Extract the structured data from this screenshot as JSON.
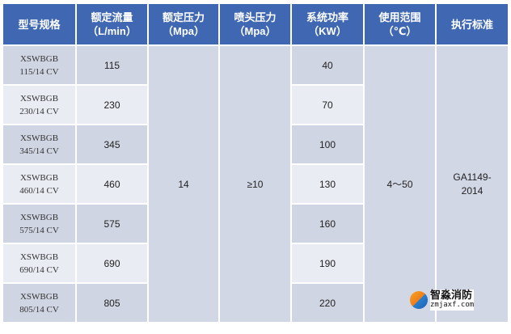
{
  "headers": [
    {
      "line1": "型号规格",
      "line2": ""
    },
    {
      "line1": "额定流量",
      "line2": "（L/min）"
    },
    {
      "line1": "额定压力",
      "line2": "（Mpa）"
    },
    {
      "line1": "喷头压力",
      "line2": "（Mpa）"
    },
    {
      "line1": "系统功率",
      "line2": "（KW）"
    },
    {
      "line1": "使用范围",
      "line2": "（℃）"
    },
    {
      "line1": "执行标准",
      "line2": ""
    }
  ],
  "rows": [
    {
      "model_line1": "XSWBGB",
      "model_line2": "115/14 CV",
      "flow": "115",
      "power": "40"
    },
    {
      "model_line1": "XSWBGB",
      "model_line2": "230/14 CV",
      "flow": "230",
      "power": "70"
    },
    {
      "model_line1": "XSWBGB",
      "model_line2": "345/14 CV",
      "flow": "345",
      "power": "100"
    },
    {
      "model_line1": "XSWBGB",
      "model_line2": "460/14 CV",
      "flow": "460",
      "power": "130"
    },
    {
      "model_line1": "XSWBGB",
      "model_line2": "575/14 CV",
      "flow": "575",
      "power": "160"
    },
    {
      "model_line1": "XSWBGB",
      "model_line2": "690/14 CV",
      "flow": "690",
      "power": "190"
    },
    {
      "model_line1": "XSWBGB",
      "model_line2": "805/14 CV",
      "flow": "805",
      "power": "220"
    }
  ],
  "merged": {
    "rated_pressure": "14",
    "nozzle_pressure": "≥10",
    "range": "4～50",
    "standard_line1": "GA1149-",
    "standard_line2": "2014"
  },
  "watermark": {
    "name": "智淼消防",
    "url": "zmjaxf.com"
  },
  "colors": {
    "header": "#4068b2",
    "row_dark": "#d0d5e3",
    "row_light": "#e9ecf3"
  }
}
